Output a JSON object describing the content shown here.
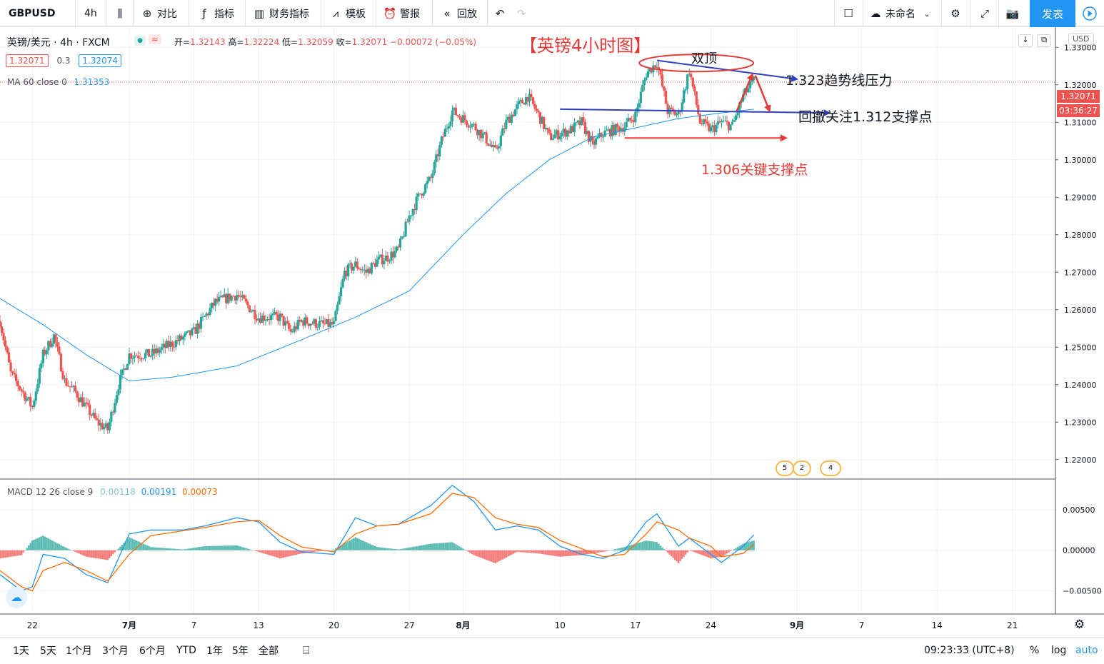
{
  "toolbar": {
    "symbol": "GBPUSD",
    "interval": "4h",
    "compare": "对比",
    "indicators": "指标",
    "financials": "财务指标",
    "templates": "模板",
    "alert": "警报",
    "replay": "回放",
    "layout_name": "未命名",
    "publish": "发表"
  },
  "legend": {
    "instrument": "英镑/美元 · 4h · FXCM",
    "open_label": "开=",
    "open": "1.32143",
    "high_label": "高=",
    "high": "1.32224",
    "low_label": "低=",
    "low": "1.32059",
    "close_label": "收=",
    "close": "1.32071",
    "change": "−0.00072 (−0.05%)",
    "bid": "1.32071",
    "spread": "0.3",
    "ask": "1.32074",
    "ma_label": "MA 60 close 0",
    "ma_value": "1.31353",
    "macd_label": "MACD 12 26 close 9",
    "macd_hist": "0.00118",
    "macd_line": "0.00191",
    "macd_signal": "0.00073"
  },
  "price_axis": {
    "currency": "USD",
    "last_price": "1.32071",
    "countdown": "03:36:27"
  },
  "time_axis_ticks": [
    {
      "label": "22",
      "strong": false
    },
    {
      "label": "7月",
      "strong": true
    },
    {
      "label": "7",
      "strong": false
    },
    {
      "label": "13",
      "strong": false
    },
    {
      "label": "20",
      "strong": false
    },
    {
      "label": "27",
      "strong": false
    },
    {
      "label": "8月",
      "strong": true
    },
    {
      "label": "10",
      "strong": false
    },
    {
      "label": "17",
      "strong": false
    },
    {
      "label": "24",
      "strong": false
    },
    {
      "label": "9月",
      "strong": true
    },
    {
      "label": "7",
      "strong": false
    },
    {
      "label": "14",
      "strong": false
    },
    {
      "label": "21",
      "strong": false
    }
  ],
  "annotations": {
    "chart_title": "【英镑4小时图】",
    "double_top": "双顶",
    "resistance": "1.323趋势线压力",
    "pullback": "回撤关注1.312支撑点",
    "support": "1.306关键支撑点"
  },
  "events": [
    "5",
    "2",
    "4"
  ],
  "bottom_bar": {
    "ranges": [
      "1天",
      "5天",
      "1个月",
      "3个月",
      "6个月",
      "YTD",
      "1年",
      "5年",
      "全部"
    ],
    "clock": "09:23:33 (UTC+8)",
    "percent": "%",
    "log": "log",
    "auto": "auto"
  },
  "colors": {
    "up": "#26a69a",
    "down": "#ef5350",
    "ma": "#2196f3",
    "macd": "#2196f3",
    "signal": "#ff6d00",
    "annotation_red": "#e53935",
    "annotation_blue": "#3040c0"
  },
  "chart_data": {
    "type": "candlestick",
    "title": "【英镑4小时图】",
    "price_ylim": [
      1.215,
      1.335
    ],
    "price_ticks": [
      "1.33000",
      "1.32000",
      "1.31000",
      "1.30000",
      "1.29000",
      "1.28000",
      "1.27000",
      "1.26000",
      "1.25000",
      "1.24000",
      "1.23000",
      "1.22000"
    ],
    "macd_ylim": [
      -0.0075,
      0.0085
    ],
    "macd_ticks": [
      "0.00500",
      "0.00000",
      "−0.00500"
    ],
    "price_path": [
      {
        "d": "2020-06-19",
        "p": 1.257
      },
      {
        "d": "2020-06-20",
        "p": 1.243
      },
      {
        "d": "2020-06-22",
        "p": 1.234
      },
      {
        "d": "2020-06-23",
        "p": 1.248
      },
      {
        "d": "2020-06-24",
        "p": 1.253
      },
      {
        "d": "2020-06-25",
        "p": 1.241
      },
      {
        "d": "2020-06-26",
        "p": 1.238
      },
      {
        "d": "2020-06-28",
        "p": 1.23
      },
      {
        "d": "2020-06-29",
        "p": 1.228
      },
      {
        "d": "2020-06-30",
        "p": 1.24
      },
      {
        "d": "2020-07-01",
        "p": 1.248
      },
      {
        "d": "2020-07-03",
        "p": 1.248
      },
      {
        "d": "2020-07-05",
        "p": 1.251
      },
      {
        "d": "2020-07-07",
        "p": 1.254
      },
      {
        "d": "2020-07-09",
        "p": 1.262
      },
      {
        "d": "2020-07-11",
        "p": 1.264
      },
      {
        "d": "2020-07-13",
        "p": 1.258
      },
      {
        "d": "2020-07-15",
        "p": 1.258
      },
      {
        "d": "2020-07-16",
        "p": 1.254
      },
      {
        "d": "2020-07-17",
        "p": 1.257
      },
      {
        "d": "2020-07-19",
        "p": 1.256
      },
      {
        "d": "2020-07-20",
        "p": 1.256
      },
      {
        "d": "2020-07-21",
        "p": 1.27
      },
      {
        "d": "2020-07-22",
        "p": 1.272
      },
      {
        "d": "2020-07-23",
        "p": 1.27
      },
      {
        "d": "2020-07-24",
        "p": 1.273
      },
      {
        "d": "2020-07-25",
        "p": 1.274
      },
      {
        "d": "2020-07-26",
        "p": 1.276
      },
      {
        "d": "2020-07-27",
        "p": 1.285
      },
      {
        "d": "2020-07-28",
        "p": 1.291
      },
      {
        "d": "2020-07-29",
        "p": 1.295
      },
      {
        "d": "2020-07-30",
        "p": 1.305
      },
      {
        "d": "2020-07-31",
        "p": 1.313
      },
      {
        "d": "2020-08-02",
        "p": 1.309
      },
      {
        "d": "2020-08-03",
        "p": 1.306
      },
      {
        "d": "2020-08-04",
        "p": 1.302
      },
      {
        "d": "2020-08-05",
        "p": 1.31
      },
      {
        "d": "2020-08-06",
        "p": 1.314
      },
      {
        "d": "2020-08-07",
        "p": 1.317
      },
      {
        "d": "2020-08-08",
        "p": 1.312
      },
      {
        "d": "2020-08-09",
        "p": 1.306
      },
      {
        "d": "2020-08-11",
        "p": 1.308
      },
      {
        "d": "2020-08-12",
        "p": 1.31
      },
      {
        "d": "2020-08-13",
        "p": 1.304
      },
      {
        "d": "2020-08-14",
        "p": 1.307
      },
      {
        "d": "2020-08-15",
        "p": 1.308
      },
      {
        "d": "2020-08-16",
        "p": 1.309
      },
      {
        "d": "2020-08-17",
        "p": 1.312
      },
      {
        "d": "2020-08-18",
        "p": 1.323
      },
      {
        "d": "2020-08-19",
        "p": 1.326
      },
      {
        "d": "2020-08-20",
        "p": 1.313
      },
      {
        "d": "2020-08-21",
        "p": 1.312
      },
      {
        "d": "2020-08-22",
        "p": 1.324
      },
      {
        "d": "2020-08-23",
        "p": 1.31
      },
      {
        "d": "2020-08-24",
        "p": 1.308
      },
      {
        "d": "2020-08-25",
        "p": 1.31
      },
      {
        "d": "2020-08-26",
        "p": 1.309
      },
      {
        "d": "2020-08-27",
        "p": 1.317
      },
      {
        "d": "2020-08-28",
        "p": 1.321
      }
    ],
    "macd_path": [
      {
        "d": "2020-06-19",
        "m": -0.003,
        "s": -0.0025,
        "h": -0.001
      },
      {
        "d": "2020-06-21",
        "m": -0.005,
        "s": -0.0045,
        "h": -0.0006
      },
      {
        "d": "2020-06-22",
        "m": -0.0045,
        "s": -0.005,
        "h": 0.0012
      },
      {
        "d": "2020-06-23",
        "m": -0.0005,
        "s": -0.0025,
        "h": 0.0018
      },
      {
        "d": "2020-06-25",
        "m": -0.001,
        "s": -0.0015,
        "h": 0.0004
      },
      {
        "d": "2020-06-27",
        "m": -0.003,
        "s": -0.0025,
        "h": -0.0008
      },
      {
        "d": "2020-06-29",
        "m": -0.004,
        "s": -0.0038,
        "h": -0.0012
      },
      {
        "d": "2020-07-01",
        "m": 0.002,
        "s": -0.0005,
        "h": 0.0016
      },
      {
        "d": "2020-07-03",
        "m": 0.0025,
        "s": 0.0018,
        "h": 0.0004
      },
      {
        "d": "2020-07-06",
        "m": 0.0025,
        "s": 0.0024,
        "h": 0.0001
      },
      {
        "d": "2020-07-08",
        "m": 0.003,
        "s": 0.0028,
        "h": 0.0005
      },
      {
        "d": "2020-07-11",
        "m": 0.004,
        "s": 0.0035,
        "h": 0.0006
      },
      {
        "d": "2020-07-13",
        "m": 0.0035,
        "s": 0.0037,
        "h": -0.0002
      },
      {
        "d": "2020-07-15",
        "m": 0.001,
        "s": 0.0018,
        "h": -0.001
      },
      {
        "d": "2020-07-17",
        "m": -0.0002,
        "s": 0.0004,
        "h": -0.0004
      },
      {
        "d": "2020-07-20",
        "m": -0.0005,
        "s": -0.0002,
        "h": 0.0001
      },
      {
        "d": "2020-07-22",
        "m": 0.004,
        "s": 0.002,
        "h": 0.0016
      },
      {
        "d": "2020-07-24",
        "m": 0.003,
        "s": 0.003,
        "h": 0.0004
      },
      {
        "d": "2020-07-26",
        "m": 0.0032,
        "s": 0.0032,
        "h": 0.0001
      },
      {
        "d": "2020-07-29",
        "m": 0.0055,
        "s": 0.0045,
        "h": 0.0008
      },
      {
        "d": "2020-07-31",
        "m": 0.008,
        "s": 0.007,
        "h": 0.001
      },
      {
        "d": "2020-08-02",
        "m": 0.006,
        "s": 0.0065,
        "h": -0.0006
      },
      {
        "d": "2020-08-04",
        "m": 0.0025,
        "s": 0.004,
        "h": -0.0016
      },
      {
        "d": "2020-08-06",
        "m": 0.003,
        "s": 0.0032,
        "h": -0.0002
      },
      {
        "d": "2020-08-08",
        "m": 0.0025,
        "s": 0.0028,
        "h": -0.0004
      },
      {
        "d": "2020-08-10",
        "m": 0.0005,
        "s": 0.0012,
        "h": -0.0008
      },
      {
        "d": "2020-08-12",
        "m": -0.0005,
        "s": 0.0002,
        "h": -0.0006
      },
      {
        "d": "2020-08-14",
        "m": -0.001,
        "s": -0.0008,
        "h": -0.0002
      },
      {
        "d": "2020-08-16",
        "m": 0.0,
        "s": -0.0005,
        "h": 0.0004
      },
      {
        "d": "2020-08-18",
        "m": 0.0035,
        "s": 0.002,
        "h": 0.0012
      },
      {
        "d": "2020-08-19",
        "m": 0.0045,
        "s": 0.0035,
        "h": 0.001
      },
      {
        "d": "2020-08-21",
        "m": 0.0005,
        "s": 0.0025,
        "h": -0.0016
      },
      {
        "d": "2020-08-22",
        "m": 0.0015,
        "s": 0.0015,
        "h": 0.0
      },
      {
        "d": "2020-08-24",
        "m": -0.0005,
        "s": 0.0005,
        "h": -0.001
      },
      {
        "d": "2020-08-25",
        "m": -0.0015,
        "s": -0.0008,
        "h": -0.0008
      },
      {
        "d": "2020-08-27",
        "m": 0.0005,
        "s": -0.0004,
        "h": 0.0008
      },
      {
        "d": "2020-08-28",
        "m": 0.0019,
        "s": 0.0007,
        "h": 0.0012
      }
    ],
    "ma_path": [
      {
        "d": "2020-06-19",
        "p": 1.263
      },
      {
        "d": "2020-06-23",
        "p": 1.256
      },
      {
        "d": "2020-06-27",
        "p": 1.248
      },
      {
        "d": "2020-07-01",
        "p": 1.241
      },
      {
        "d": "2020-07-05",
        "p": 1.242
      },
      {
        "d": "2020-07-11",
        "p": 1.245
      },
      {
        "d": "2020-07-17",
        "p": 1.252
      },
      {
        "d": "2020-07-22",
        "p": 1.258
      },
      {
        "d": "2020-07-27",
        "p": 1.265
      },
      {
        "d": "2020-08-01",
        "p": 1.28
      },
      {
        "d": "2020-08-05",
        "p": 1.291
      },
      {
        "d": "2020-08-09",
        "p": 1.3
      },
      {
        "d": "2020-08-13",
        "p": 1.306
      },
      {
        "d": "2020-08-17",
        "p": 1.3085
      },
      {
        "d": "2020-08-21",
        "p": 1.311
      },
      {
        "d": "2020-08-25",
        "p": 1.3125
      },
      {
        "d": "2020-08-28",
        "p": 1.3135
      }
    ],
    "date_range": [
      "2020-06-19",
      "2020-09-25"
    ],
    "trend_lines": [
      {
        "name": "resistance",
        "from": {
          "d": "2020-08-19",
          "p": 1.3265
        },
        "to": {
          "d": "2020-09-01",
          "p": 1.3215
        }
      },
      {
        "name": "pullback-support",
        "from": {
          "d": "2020-08-10",
          "p": 1.3135
        },
        "to": {
          "d": "2020-09-04",
          "p": 1.3125
        }
      },
      {
        "name": "key-support",
        "from": {
          "d": "2020-08-16",
          "p": 1.3058
        },
        "to": {
          "d": "2020-08-31",
          "p": 1.3058
        }
      }
    ]
  }
}
